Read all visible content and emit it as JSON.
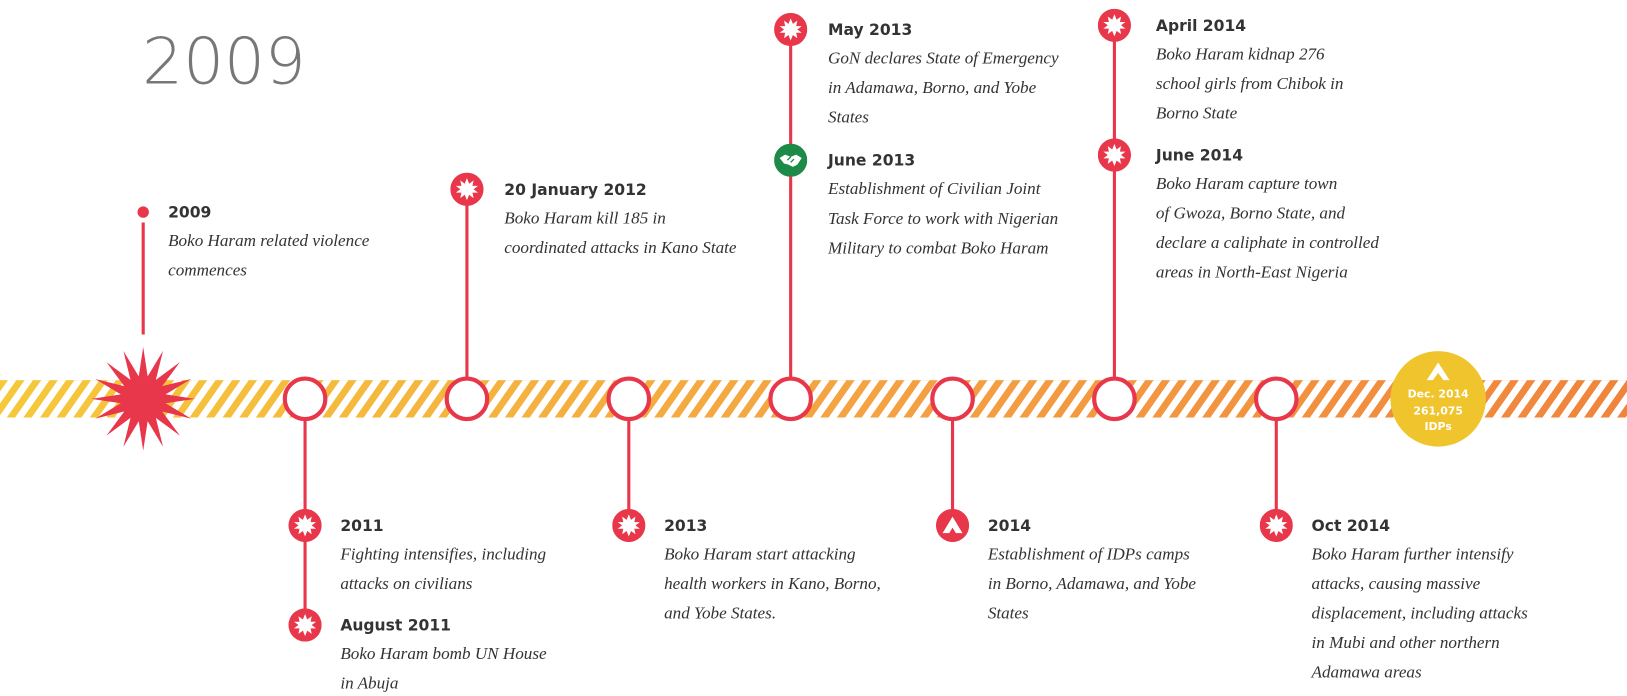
{
  "title": "2009",
  "events": [
    {
      "date": "2009",
      "lines": [
        "Boko Haram related violence",
        "commences"
      ]
    },
    {
      "date": "2011",
      "lines": [
        "Fighting intensifies, including",
        "attacks on civilians"
      ]
    },
    {
      "date": "August 2011",
      "lines": [
        "Boko Haram bomb UN House",
        "in Abuja"
      ]
    },
    {
      "date": "20 January 2012",
      "lines": [
        "Boko Haram kill 185 in",
        "coordinated attacks in Kano State"
      ]
    },
    {
      "date": "2013",
      "lines": [
        "Boko Haram start attacking",
        "health workers in Kano, Borno,",
        "and Yobe States."
      ]
    },
    {
      "date": "May 2013",
      "lines": [
        "GoN declares State of Emergency",
        "in Adamawa, Borno, and Yobe",
        "States"
      ]
    },
    {
      "date": "June 2013",
      "lines": [
        "Establishment of Civilian Joint",
        "Task Force to work with Nigerian",
        "Military to combat Boko Haram"
      ]
    },
    {
      "date": "2014",
      "lines": [
        "Establishment of IDPs camps",
        "in Borno, Adamawa, and Yobe",
        "States"
      ]
    },
    {
      "date": "April 2014",
      "lines": [
        "Boko Haram kidnap 276",
        "school girls from Chibok in",
        "Borno State"
      ]
    },
    {
      "date": "June 2014",
      "lines": [
        "Boko Haram capture town",
        "of Gwoza, Borno State, and",
        "declare a caliphate in controlled",
        "areas in North-East Nigeria"
      ]
    },
    {
      "date": "Oct 2014",
      "lines": [
        "Boko Haram further intensify",
        "attacks, causing massive",
        "displacement, including attacks",
        "in Mubi and other northern",
        "Adamawa areas"
      ]
    }
  ],
  "badge": {
    "date": "Dec. 2014",
    "count": "261,075",
    "label": "IDPs"
  }
}
